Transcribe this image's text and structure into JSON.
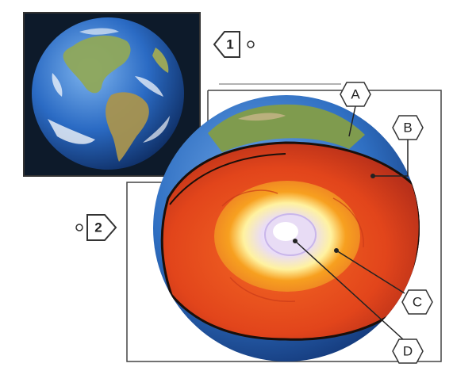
{
  "markers": {
    "panel1": "1",
    "panel2": "2"
  },
  "labels": {
    "a": "A",
    "b": "B",
    "c": "C",
    "d": "D"
  },
  "colors": {
    "ocean": "#2f6fc2",
    "land": "#8fa85a",
    "space": "#0d1a2a",
    "mantle": "#e0451c",
    "outer_core": "#f7a020",
    "inner_core": "#e8dcf5",
    "crust_line": "#1a0f0a"
  }
}
